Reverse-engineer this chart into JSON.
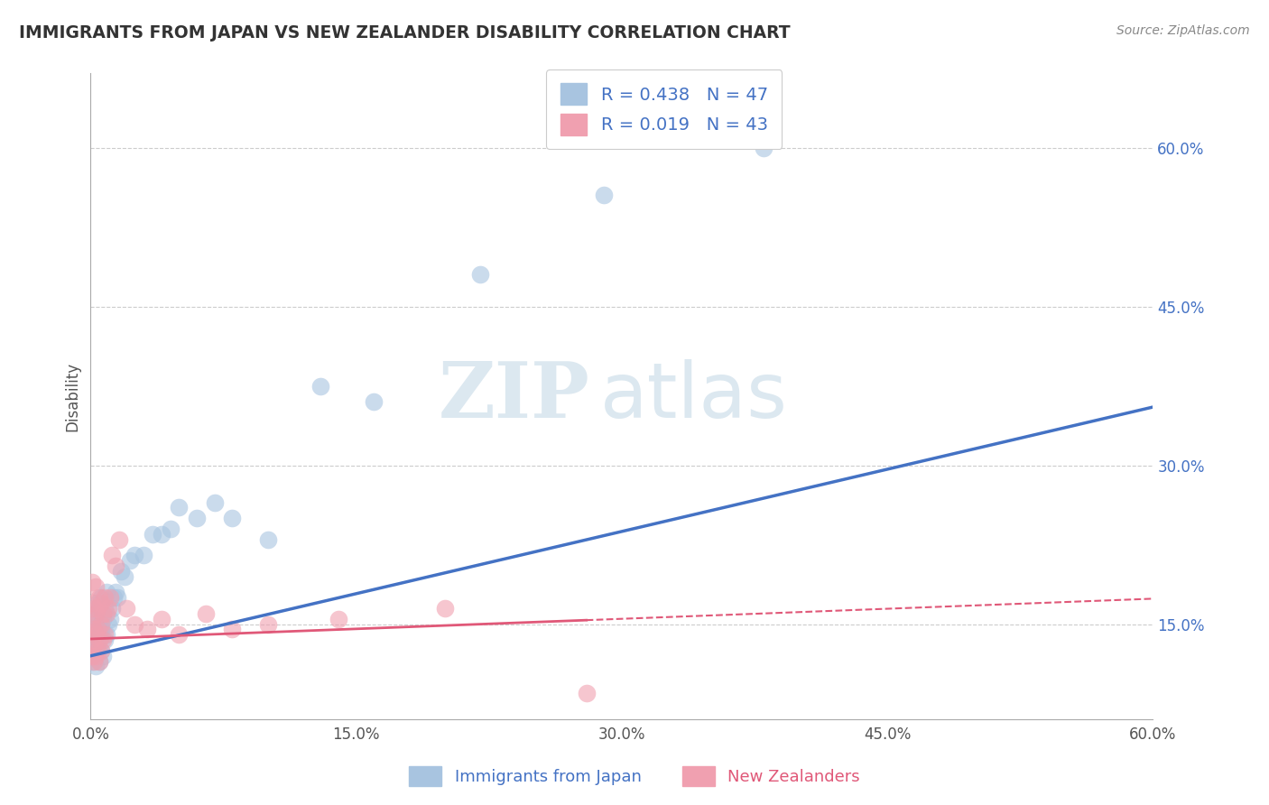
{
  "title": "IMMIGRANTS FROM JAPAN VS NEW ZEALANDER DISABILITY CORRELATION CHART",
  "source": "Source: ZipAtlas.com",
  "ylabel": "Disability",
  "xlim": [
    0.0,
    0.6
  ],
  "ylim": [
    0.06,
    0.67
  ],
  "xticks": [
    0.0,
    0.15,
    0.3,
    0.45,
    0.6
  ],
  "xticklabels": [
    "0.0%",
    "15.0%",
    "30.0%",
    "45.0%",
    "60.0%"
  ],
  "yticks_right": [
    0.15,
    0.3,
    0.45,
    0.6
  ],
  "ytick_right_labels": [
    "15.0%",
    "30.0%",
    "45.0%",
    "60.0%"
  ],
  "grid_color": "#cccccc",
  "background_color": "#ffffff",
  "watermark_zip": "ZIP",
  "watermark_atlas": "atlas",
  "series1_color": "#a8c4e0",
  "series2_color": "#f0a0b0",
  "series1_line_color": "#4472c4",
  "series2_line_color": "#e05878",
  "series1_label": "Immigrants from Japan",
  "series2_label": "New Zealanders",
  "R1": 0.438,
  "N1": 47,
  "R2": 0.019,
  "N2": 43,
  "series1_x": [
    0.001,
    0.001,
    0.002,
    0.002,
    0.002,
    0.003,
    0.003,
    0.003,
    0.004,
    0.004,
    0.004,
    0.005,
    0.005,
    0.005,
    0.006,
    0.006,
    0.006,
    0.007,
    0.007,
    0.008,
    0.008,
    0.009,
    0.009,
    0.01,
    0.011,
    0.012,
    0.013,
    0.014,
    0.015,
    0.017,
    0.019,
    0.022,
    0.025,
    0.03,
    0.035,
    0.04,
    0.045,
    0.05,
    0.06,
    0.07,
    0.08,
    0.1,
    0.13,
    0.16,
    0.22,
    0.29,
    0.38
  ],
  "series1_y": [
    0.115,
    0.13,
    0.12,
    0.135,
    0.155,
    0.11,
    0.125,
    0.16,
    0.13,
    0.15,
    0.17,
    0.115,
    0.14,
    0.165,
    0.125,
    0.145,
    0.175,
    0.12,
    0.155,
    0.135,
    0.165,
    0.14,
    0.18,
    0.15,
    0.155,
    0.165,
    0.175,
    0.18,
    0.175,
    0.2,
    0.195,
    0.21,
    0.215,
    0.215,
    0.235,
    0.235,
    0.24,
    0.26,
    0.25,
    0.265,
    0.25,
    0.23,
    0.375,
    0.36,
    0.48,
    0.555,
    0.6
  ],
  "series2_x": [
    0.001,
    0.001,
    0.001,
    0.001,
    0.001,
    0.002,
    0.002,
    0.002,
    0.002,
    0.003,
    0.003,
    0.003,
    0.003,
    0.004,
    0.004,
    0.004,
    0.005,
    0.005,
    0.005,
    0.006,
    0.006,
    0.006,
    0.007,
    0.007,
    0.008,
    0.008,
    0.009,
    0.01,
    0.011,
    0.012,
    0.014,
    0.016,
    0.02,
    0.025,
    0.032,
    0.04,
    0.05,
    0.065,
    0.08,
    0.1,
    0.14,
    0.2,
    0.28
  ],
  "series2_y": [
    0.12,
    0.135,
    0.15,
    0.17,
    0.19,
    0.115,
    0.13,
    0.145,
    0.165,
    0.12,
    0.14,
    0.16,
    0.185,
    0.125,
    0.145,
    0.165,
    0.115,
    0.135,
    0.175,
    0.125,
    0.15,
    0.17,
    0.135,
    0.16,
    0.14,
    0.175,
    0.16,
    0.165,
    0.175,
    0.215,
    0.205,
    0.23,
    0.165,
    0.15,
    0.145,
    0.155,
    0.14,
    0.16,
    0.145,
    0.15,
    0.155,
    0.165,
    0.085
  ]
}
